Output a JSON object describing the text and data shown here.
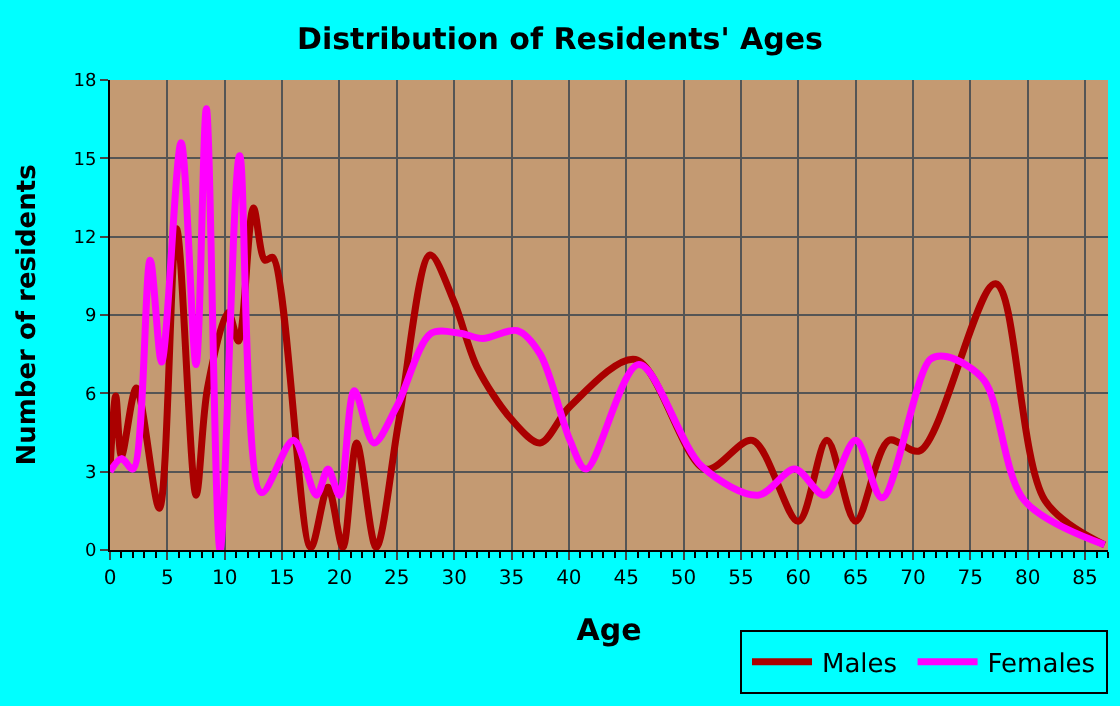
{
  "chart_data": {
    "type": "line",
    "title": "Distribution of Residents' Ages",
    "xlabel": "Age",
    "ylabel": "Number of residents",
    "xlim": [
      0,
      87
    ],
    "xticks": [
      0,
      5,
      10,
      15,
      20,
      25,
      30,
      35,
      40,
      45,
      50,
      55,
      60,
      65,
      70,
      75,
      80,
      85
    ],
    "ylim": [
      0,
      18
    ],
    "yticks": [
      0,
      3,
      6,
      9,
      12,
      15,
      18
    ],
    "grid": true,
    "legend": "bottom right",
    "marker": "none",
    "line_style": "solid",
    "series": [
      {
        "name": "Males",
        "color": "#aa0000",
        "x": [
          0,
          0.5,
          1,
          2.3,
          4.3,
          5.8,
          7.5,
          8.5,
          10.3,
          11.2,
          12.5,
          13.5,
          14.2,
          17.5,
          19,
          20.3,
          21.5,
          23.2,
          25.2,
          27.9,
          30,
          32,
          35,
          37.5,
          40.1,
          45.8,
          51.9,
          56,
          60,
          62.5,
          65,
          67.9,
          70.6,
          77.2,
          81.5,
          86.7
        ],
        "values": [
          3.1,
          5.9,
          3.6,
          6.2,
          1.6,
          12.3,
          2.1,
          6.2,
          9.1,
          8.0,
          13.1,
          11.1,
          11.2,
          0.1,
          2.4,
          0.1,
          4.1,
          0.1,
          5,
          11.3,
          9.5,
          7,
          5,
          4.1,
          5.5,
          7.3,
          3.1,
          4.2,
          1.1,
          4.2,
          1.1,
          4.2,
          3.8,
          10.2,
          1.9,
          0.2
        ]
      },
      {
        "name": "Females",
        "color": "#ff00ff",
        "x": [
          0,
          1,
          2,
          3.5,
          4.5,
          6.2,
          7.5,
          8.4,
          9.6,
          11.3,
          13.2,
          16,
          18,
          19,
          20,
          21.3,
          23,
          25,
          28,
          30.5,
          32.5,
          35.5,
          37.5,
          40.1,
          41.5,
          46.1,
          51.6,
          56.5,
          59.7,
          62.3,
          65,
          67.3,
          71.5,
          73,
          76.2,
          79.7,
          86.7
        ],
        "values": [
          3.0,
          3.5,
          3.1,
          11.1,
          7.2,
          15.6,
          7.1,
          16.9,
          0,
          15.1,
          2.2,
          4.2,
          2.1,
          3.1,
          2.1,
          6.1,
          4.1,
          5.5,
          8.3,
          8.3,
          8.1,
          8.4,
          7.5,
          4.2,
          3.1,
          7.1,
          3.2,
          2.1,
          3.1,
          2.1,
          4.2,
          2.0,
          7.3,
          7.4,
          6.5,
          1.9,
          0.2
        ]
      }
    ]
  }
}
